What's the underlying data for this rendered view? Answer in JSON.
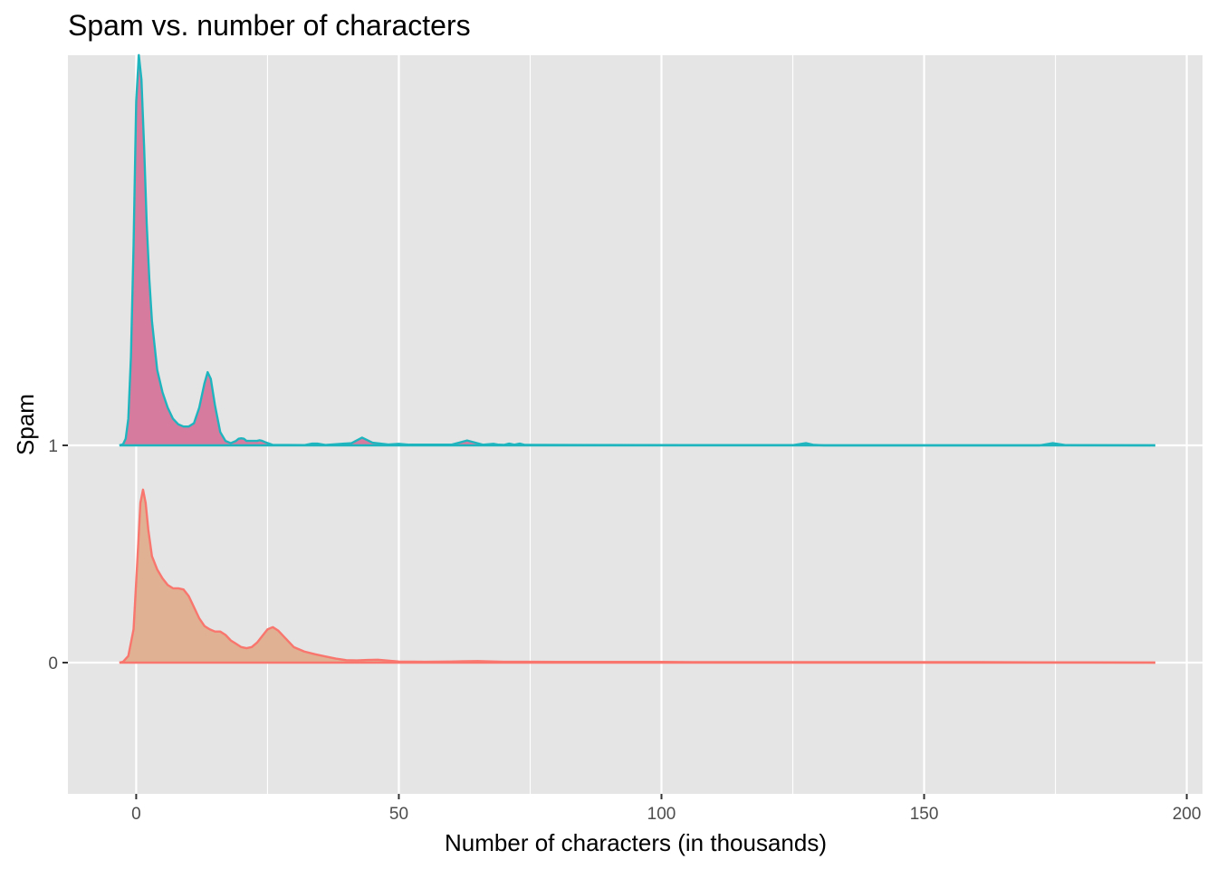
{
  "chart_data": {
    "type": "area",
    "subtype": "ridgeline-density",
    "title": "Spam vs. number of characters",
    "xlabel": "Number of characters (in thousands)",
    "ylabel": "Spam",
    "xlim": [
      -13,
      203
    ],
    "x_ticks": [
      0,
      50,
      100,
      150,
      200
    ],
    "x_minor_ticks": [
      25,
      75,
      125,
      175
    ],
    "y_categories": [
      "0",
      "1"
    ],
    "grid": true,
    "legend": "none",
    "panel_color": "#e5e5e5",
    "grid_color": "#ffffff",
    "series": [
      {
        "category": "0",
        "line_color": "#f8766d",
        "fill_color": "#e0b193",
        "x": [
          -3.2,
          -2.5,
          -1.5,
          -0.5,
          0.2,
          0.8,
          1.3,
          1.8,
          2.3,
          3,
          4,
          5,
          6,
          7,
          8,
          9,
          10,
          11,
          12,
          13,
          14,
          15,
          16,
          17,
          18,
          19,
          20,
          21,
          22,
          23,
          24,
          25,
          26,
          27,
          28,
          29,
          30,
          32,
          34,
          36,
          38,
          40,
          42,
          44,
          46,
          48,
          50,
          55,
          60,
          65,
          70,
          75,
          80,
          90,
          100,
          110,
          120,
          140,
          160,
          180,
          194
        ],
        "y": [
          0,
          0.004,
          0.03,
          0.15,
          0.45,
          0.72,
          0.78,
          0.72,
          0.6,
          0.48,
          0.42,
          0.38,
          0.35,
          0.335,
          0.335,
          0.33,
          0.3,
          0.25,
          0.2,
          0.165,
          0.15,
          0.14,
          0.14,
          0.125,
          0.1,
          0.085,
          0.07,
          0.065,
          0.07,
          0.09,
          0.12,
          0.15,
          0.16,
          0.145,
          0.12,
          0.095,
          0.07,
          0.05,
          0.038,
          0.028,
          0.018,
          0.011,
          0.01,
          0.012,
          0.013,
          0.009,
          0.005,
          0.004,
          0.005,
          0.007,
          0.004,
          0.004,
          0.003,
          0.003,
          0.003,
          0.002,
          0.002,
          0.002,
          0.002,
          0.001,
          0
        ]
      },
      {
        "category": "1",
        "line_color": "#1fb5bf",
        "fill_color": "#d67a9e",
        "x": [
          -3.2,
          -2.5,
          -2,
          -1.5,
          -1,
          -0.5,
          0,
          0.5,
          1,
          1.5,
          2,
          2.5,
          3,
          4,
          5,
          6,
          7,
          8,
          9,
          10,
          11,
          12,
          13,
          13.6,
          14.2,
          15,
          16,
          17,
          18,
          19,
          19.5,
          20,
          20.5,
          21,
          22,
          23,
          23.5,
          24,
          24.5,
          26,
          32,
          33.5,
          34.5,
          36,
          41,
          43,
          45,
          48,
          50,
          52,
          60,
          63,
          66,
          68,
          69,
          70,
          71,
          72,
          73,
          74,
          125,
          127.5,
          129,
          131,
          172,
          174.5,
          177,
          194
        ],
        "y": [
          0,
          0.005,
          0.03,
          0.12,
          0.4,
          0.9,
          1.55,
          1.76,
          1.65,
          1.35,
          1.0,
          0.75,
          0.56,
          0.34,
          0.24,
          0.17,
          0.12,
          0.095,
          0.085,
          0.085,
          0.1,
          0.17,
          0.28,
          0.33,
          0.3,
          0.18,
          0.06,
          0.02,
          0.01,
          0.02,
          0.03,
          0.032,
          0.03,
          0.02,
          0.02,
          0.02,
          0.023,
          0.02,
          0.015,
          0.002,
          0.001,
          0.008,
          0.008,
          0.002,
          0.01,
          0.035,
          0.012,
          0.004,
          0.007,
          0.003,
          0.003,
          0.022,
          0.003,
          0.007,
          0.003,
          0.002,
          0.008,
          0.003,
          0.008,
          0.002,
          0.001,
          0.01,
          0.002,
          0,
          0,
          0.01,
          0.001,
          0
        ]
      }
    ]
  }
}
